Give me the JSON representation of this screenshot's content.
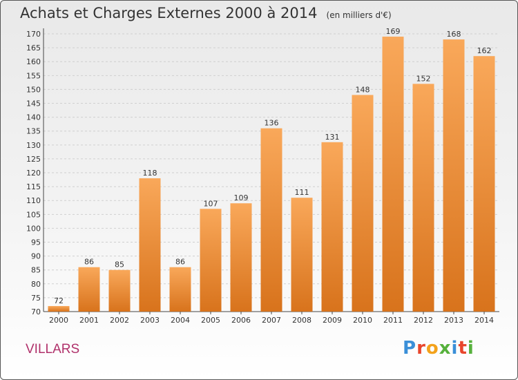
{
  "title": "Achats et Charges Externes 2000 à 2014",
  "unit": "(en milliers d'€)",
  "place": "VILLARS",
  "logo": [
    "P",
    "r",
    "o",
    "x",
    "i",
    "t",
    "i"
  ],
  "colors": {
    "bar_top": "#f9a85a",
    "bar_bottom": "#d8731c",
    "logo": [
      "#3a8fd8",
      "#e8452c",
      "#f3a21b",
      "#56b13c",
      "#3a8fd8",
      "#e8452c",
      "#56b13c"
    ]
  },
  "chart_data": {
    "type": "bar",
    "categories": [
      "2000",
      "2001",
      "2002",
      "2003",
      "2004",
      "2005",
      "2006",
      "2007",
      "2008",
      "2009",
      "2010",
      "2011",
      "2012",
      "2013",
      "2014"
    ],
    "values": [
      72,
      86,
      85,
      118,
      86,
      107,
      109,
      136,
      111,
      131,
      148,
      169,
      152,
      168,
      162
    ],
    "ylim": [
      70,
      172
    ],
    "yticks": [
      70,
      75,
      80,
      85,
      90,
      95,
      100,
      105,
      110,
      115,
      120,
      125,
      130,
      135,
      140,
      145,
      150,
      155,
      160,
      165,
      170
    ],
    "grid": true
  }
}
